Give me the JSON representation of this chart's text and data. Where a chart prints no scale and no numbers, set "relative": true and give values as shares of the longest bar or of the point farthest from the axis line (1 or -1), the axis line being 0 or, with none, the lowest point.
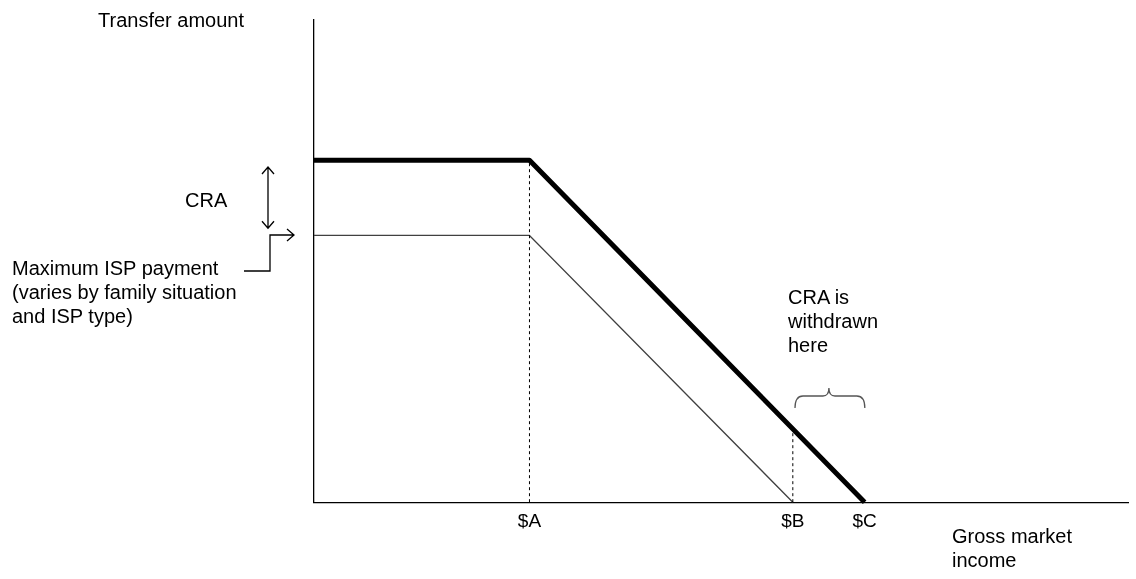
{
  "chart_data": {
    "type": "line",
    "relative": true,
    "xlabel": "Gross market income",
    "categories": [
      null,
      null,
      null,
      null,
      null,
      null,
      null,
      null,
      null,
      "$A",
      null,
      null,
      null,
      null,
      null,
      null,
      null,
      null,
      null,
      null,
      "$B",
      null,
      null,
      "$C",
      null,
      null,
      null,
      null,
      null,
      null,
      null,
      null,
      null,
      null,
      null
    ],
    "series": [
      {
        "color": "#000000",
        "values": [
          1,
          null,
          null,
          null,
          null,
          null,
          null,
          null,
          null,
          1,
          null,
          null,
          null,
          null,
          null,
          null,
          null,
          null,
          null,
          null,
          null,
          null,
          null,
          0,
          null,
          null,
          null,
          null,
          null,
          null,
          null,
          null,
          null,
          null,
          null
        ]
      },
      {
        "color": "#404040",
        "values": [
          0.78,
          null,
          null,
          null,
          null,
          null,
          null,
          null,
          null,
          0.78,
          null,
          null,
          null,
          null,
          null,
          null,
          null,
          null,
          null,
          null,
          0,
          null,
          null,
          null,
          null,
          null,
          null,
          null,
          null,
          null,
          null,
          null,
          null,
          null,
          null
        ]
      }
    ],
    "ref_lines": [
      {
        "axis": "x",
        "value": "$A",
        "line_style": "dashed",
        "color": "#000000"
      },
      {
        "axis": "x",
        "value": "$B",
        "line_style": "dashed",
        "color": "#000000"
      }
    ],
    "annotations": [
      "Transfer amount",
      "CRA",
      "Maximum ISP payment (varies by family situation and ISP type)",
      "CRA is withdrawn here"
    ],
    "grid": false,
    "legend": false,
    "marker": "none",
    "line_style": "solid"
  }
}
